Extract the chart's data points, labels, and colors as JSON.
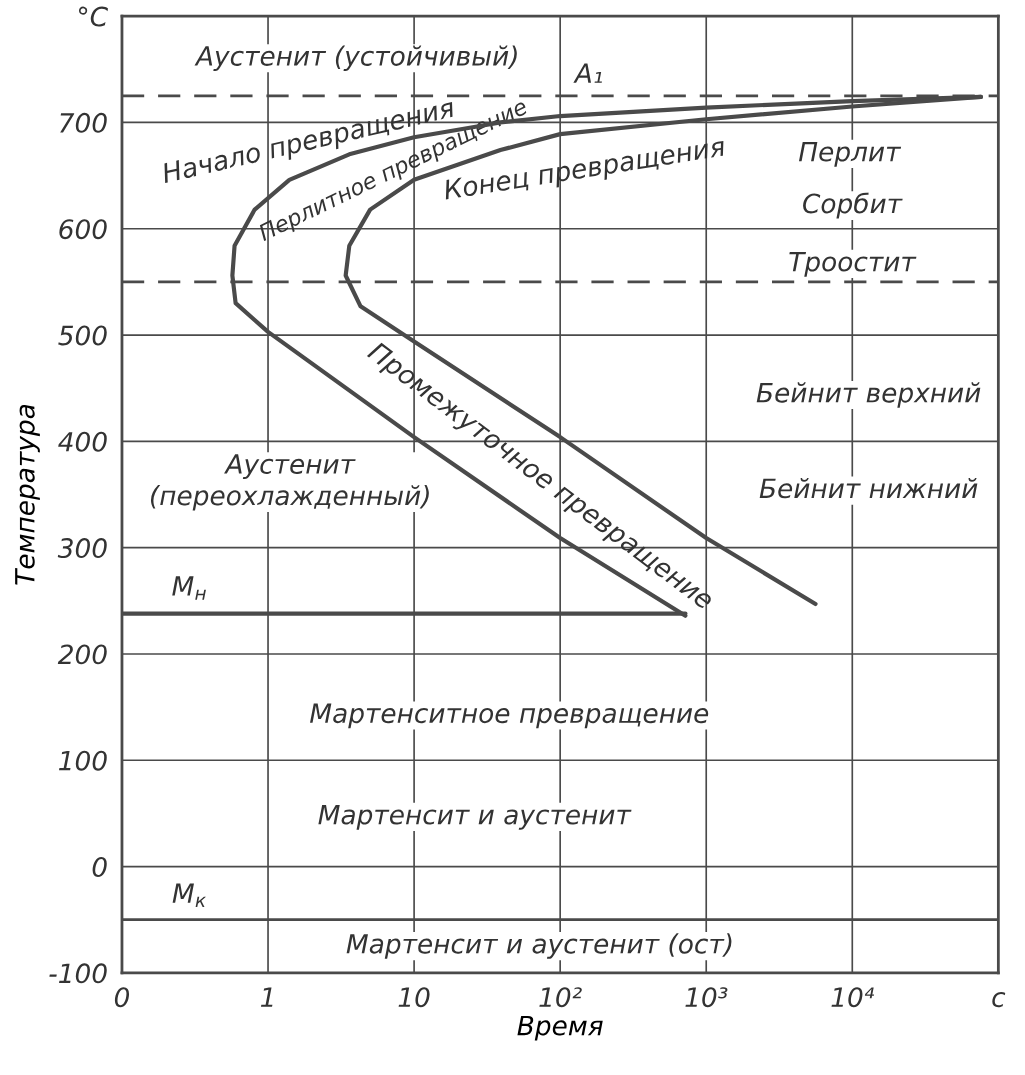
{
  "chart_data": {
    "type": "line",
    "xlabel": "Время",
    "ylabel": "Температура",
    "log": "x",
    "grid": true,
    "xlim": [
      0.1,
      100000
    ],
    "xticks": [
      {
        "value": 0.1,
        "label": "0"
      },
      1,
      10,
      {
        "value": 100,
        "label": "10²"
      },
      {
        "value": 1000,
        "label": "10³"
      },
      {
        "value": 10000,
        "label": "10⁴"
      },
      {
        "value": 100000,
        "label": "c"
      }
    ],
    "ylim": [
      -100,
      800
    ],
    "yticks": [
      -100,
      0,
      100,
      200,
      300,
      400,
      500,
      600,
      700,
      {
        "value": 800,
        "label": "°C"
      }
    ],
    "series": [
      {
        "color": "#4a4a4a",
        "x": [
          76000,
          10000,
          1000,
          100,
          39,
          10,
          3.6,
          1.4,
          0.81,
          0.59,
          0.57,
          0.6,
          1,
          10,
          100,
          720
        ],
        "values": [
          724,
          720,
          714,
          706,
          700,
          686,
          670,
          646,
          618,
          584,
          556,
          530,
          503,
          404,
          309,
          236
        ]
      },
      {
        "color": "#4a4a4a",
        "x": [
          76000,
          10000,
          1000,
          100,
          39,
          10,
          5,
          3.6,
          3.4,
          4.3,
          10,
          100,
          1000,
          5600
        ],
        "values": [
          724,
          715,
          703,
          689,
          674,
          646,
          618,
          584,
          556,
          527,
          494,
          404,
          309,
          247
        ]
      },
      {
        "color": "#4a4a4a",
        "x": [
          0.1,
          720
        ],
        "values": [
          238,
          238
        ]
      }
    ],
    "ref_lines": [
      {
        "axis": "y",
        "value": 725,
        "line_style": "dashed",
        "color": "#4a4a4a"
      },
      {
        "axis": "y",
        "value": 550,
        "line_style": "dashed",
        "color": "#4a4a4a"
      },
      {
        "axis": "y",
        "value": -50,
        "line_style": "solid",
        "color": "#4a4a4a"
      }
    ],
    "annotations": [
      "Аустенит (устойчивый)",
      "A₁",
      "Начало превращения",
      "Перлитное превращение",
      "Конец превращения",
      "Перлит",
      "Сорбит",
      "Троостит",
      "Бейнит верхний",
      "Бейнит нижний",
      "Аустенит\n(переохлажденный)",
      "Промежуточное превращение",
      "M$_{н}$",
      "Мартенситное превращение",
      "Мартенсит и аустенит",
      "M$_{к}$",
      "Мартенсит и аустенит (ост)"
    ]
  }
}
